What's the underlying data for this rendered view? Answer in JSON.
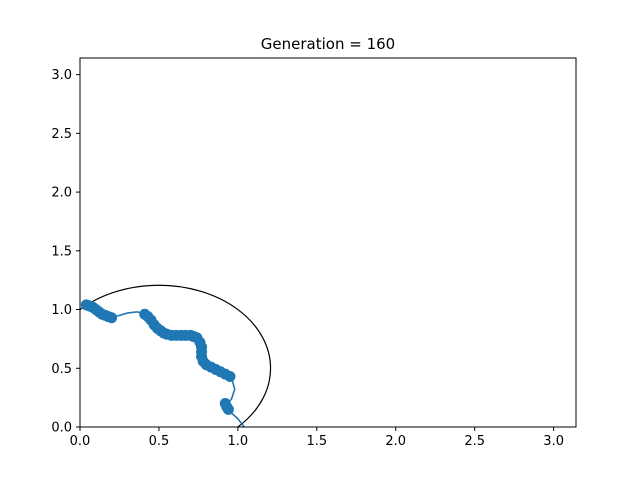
{
  "chart_data": {
    "type": "scatter",
    "title": "Generation = 160",
    "xlabel": "",
    "ylabel": "",
    "xlim": [
      0,
      3.1416
    ],
    "ylim": [
      0,
      3.1416
    ],
    "xticks": [
      "0.0",
      "0.5",
      "1.0",
      "1.5",
      "2.0",
      "2.5",
      "3.0"
    ],
    "yticks": [
      "0.0",
      "0.5",
      "1.0",
      "1.5",
      "2.0",
      "2.5",
      "3.0"
    ],
    "grid": false,
    "colors": {
      "series": "#1f77b4",
      "circle": "#000000"
    },
    "circle": {
      "center": [
        0.5,
        0.5
      ],
      "radius": 0.707
    },
    "curve": [
      [
        0.02,
        1.03
      ],
      [
        0.05,
        1.04
      ],
      [
        0.1,
        1.0
      ],
      [
        0.15,
        0.96
      ],
      [
        0.2,
        0.93
      ],
      [
        0.25,
        0.95
      ],
      [
        0.3,
        0.97
      ],
      [
        0.36,
        0.98
      ],
      [
        0.4,
        0.97
      ],
      [
        0.45,
        0.92
      ],
      [
        0.5,
        0.84
      ],
      [
        0.55,
        0.8
      ],
      [
        0.6,
        0.78
      ],
      [
        0.65,
        0.78
      ],
      [
        0.7,
        0.78
      ],
      [
        0.74,
        0.76
      ],
      [
        0.77,
        0.7
      ],
      [
        0.78,
        0.58
      ],
      [
        0.8,
        0.52
      ],
      [
        0.85,
        0.48
      ],
      [
        0.9,
        0.45
      ],
      [
        0.96,
        0.42
      ],
      [
        0.98,
        0.32
      ],
      [
        0.96,
        0.24
      ],
      [
        0.93,
        0.19
      ],
      [
        0.95,
        0.13
      ],
      [
        1.0,
        0.07
      ],
      [
        1.04,
        0.0
      ]
    ],
    "series": [
      {
        "points": [
          [
            0.04,
            1.04
          ],
          [
            0.06,
            1.03
          ],
          [
            0.08,
            1.02
          ],
          [
            0.1,
            1.0
          ],
          [
            0.12,
            0.98
          ],
          [
            0.14,
            0.96
          ],
          [
            0.16,
            0.95
          ],
          [
            0.18,
            0.94
          ],
          [
            0.2,
            0.93
          ],
          [
            0.41,
            0.96
          ],
          [
            0.43,
            0.94
          ],
          [
            0.45,
            0.91
          ],
          [
            0.47,
            0.87
          ],
          [
            0.49,
            0.84
          ],
          [
            0.51,
            0.82
          ],
          [
            0.53,
            0.8
          ],
          [
            0.55,
            0.79
          ],
          [
            0.58,
            0.78
          ],
          [
            0.61,
            0.78
          ],
          [
            0.64,
            0.78
          ],
          [
            0.67,
            0.78
          ],
          [
            0.7,
            0.78
          ],
          [
            0.72,
            0.77
          ],
          [
            0.74,
            0.76
          ],
          [
            0.76,
            0.72
          ],
          [
            0.77,
            0.68
          ],
          [
            0.77,
            0.64
          ],
          [
            0.77,
            0.6
          ],
          [
            0.78,
            0.56
          ],
          [
            0.8,
            0.53
          ],
          [
            0.83,
            0.51
          ],
          [
            0.86,
            0.49
          ],
          [
            0.89,
            0.47
          ],
          [
            0.92,
            0.45
          ],
          [
            0.95,
            0.43
          ],
          [
            0.92,
            0.2
          ],
          [
            0.93,
            0.17
          ],
          [
            0.94,
            0.15
          ]
        ]
      }
    ]
  }
}
